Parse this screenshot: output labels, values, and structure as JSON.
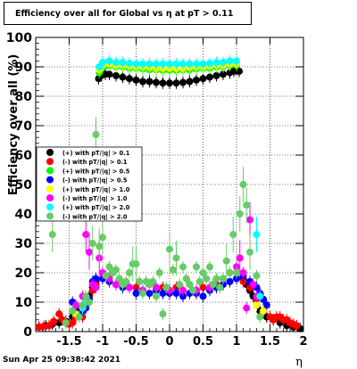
{
  "timestamp": "Sun Apr 25 09:38:42 2021",
  "chart_data": {
    "type": "scatter",
    "title": "Efficiency over all for Global vs   η at pT > 0.11",
    "xlabel": "η",
    "ylabel": "Efficiency over all (%)",
    "xlim": [
      -2,
      2
    ],
    "ylim": [
      0,
      100
    ],
    "x_ticks": [
      "-1.5",
      "-1",
      "-0.5",
      "0",
      "0.5",
      "1",
      "1.5",
      "2"
    ],
    "y_ticks": [
      "0",
      "10",
      "20",
      "30",
      "40",
      "50",
      "60",
      "70",
      "80",
      "90",
      "100"
    ],
    "grid": true,
    "legend_position": "middle-left",
    "series": [
      {
        "name": "(+) with pT/|q| > 0.1",
        "color": "#000000",
        "points": [
          [
            -1.95,
            1.5
          ],
          [
            -1.85,
            2
          ],
          [
            -1.75,
            2.5
          ],
          [
            -1.65,
            3
          ],
          [
            -1.55,
            3.5
          ],
          [
            -1.45,
            5
          ],
          [
            -1.35,
            7
          ],
          [
            -1.25,
            9
          ],
          [
            -1.2,
            12
          ],
          [
            -1.15,
            15
          ],
          [
            -1.1,
            17
          ],
          [
            -1.06,
            86
          ],
          [
            -1.02,
            87
          ],
          [
            -0.96,
            87.5
          ],
          [
            -0.9,
            87.5
          ],
          [
            -0.8,
            87
          ],
          [
            -0.7,
            86.5
          ],
          [
            -0.6,
            86
          ],
          [
            -0.5,
            85.5
          ],
          [
            -0.4,
            85
          ],
          [
            -0.3,
            85
          ],
          [
            -0.2,
            84.7
          ],
          [
            -0.1,
            84.5
          ],
          [
            0,
            84.5
          ],
          [
            0.1,
            84.5
          ],
          [
            0.2,
            84.7
          ],
          [
            0.3,
            85
          ],
          [
            0.4,
            85.5
          ],
          [
            0.5,
            86
          ],
          [
            0.6,
            86.5
          ],
          [
            0.7,
            87
          ],
          [
            0.8,
            87.5
          ],
          [
            0.9,
            88
          ],
          [
            0.96,
            88.5
          ],
          [
            1.0,
            89
          ],
          [
            1.04,
            88.5
          ],
          [
            1.1,
            18
          ],
          [
            1.15,
            16
          ],
          [
            1.2,
            14
          ],
          [
            1.25,
            12
          ],
          [
            1.3,
            9
          ],
          [
            1.35,
            7
          ],
          [
            1.45,
            5
          ],
          [
            1.55,
            4
          ],
          [
            1.65,
            3
          ],
          [
            1.75,
            2
          ],
          [
            1.85,
            1.5
          ],
          [
            1.95,
            1
          ]
        ]
      },
      {
        "name": "(-) with pT/|q| > 0.1",
        "color": "#ff0000",
        "points": [
          [
            -1.95,
            1.5
          ],
          [
            -1.88,
            1.8
          ],
          [
            -1.8,
            2
          ],
          [
            -1.73,
            3.5
          ],
          [
            -1.65,
            6
          ],
          [
            -1.6,
            4
          ],
          [
            -1.55,
            3
          ],
          [
            -1.5,
            2.5
          ],
          [
            -1.45,
            3
          ],
          [
            -1.4,
            5
          ],
          [
            -1.3,
            5
          ],
          [
            -1.25,
            9
          ],
          [
            -1.2,
            11
          ],
          [
            -1.15,
            14
          ],
          [
            -1.1,
            16
          ],
          [
            -0.9,
            17
          ],
          [
            -0.7,
            16
          ],
          [
            -0.5,
            15
          ],
          [
            -0.3,
            16
          ],
          [
            -0.1,
            15
          ],
          [
            0.1,
            15
          ],
          [
            0.3,
            16
          ],
          [
            0.5,
            15
          ],
          [
            0.7,
            16
          ],
          [
            0.9,
            17
          ],
          [
            1.1,
            17
          ],
          [
            1.2,
            15
          ],
          [
            1.3,
            11
          ],
          [
            1.4,
            7
          ],
          [
            1.5,
            5
          ],
          [
            1.55,
            4
          ],
          [
            1.6,
            5
          ],
          [
            1.65,
            5
          ],
          [
            1.7,
            4
          ],
          [
            1.75,
            4
          ],
          [
            1.8,
            3
          ],
          [
            1.85,
            2.5
          ],
          [
            1.9,
            2
          ]
        ]
      },
      {
        "name": "(+) with pT/|q| > 0.5",
        "color": "#00ff00",
        "points": [
          [
            -1.05,
            88
          ],
          [
            -1.0,
            90
          ],
          [
            -0.95,
            90.5
          ],
          [
            -0.9,
            90.5
          ],
          [
            -0.8,
            90
          ],
          [
            -0.7,
            90
          ],
          [
            -0.6,
            89.5
          ],
          [
            -0.5,
            89.5
          ],
          [
            -0.4,
            89.3
          ],
          [
            -0.3,
            89
          ],
          [
            -0.2,
            89
          ],
          [
            -0.1,
            88.8
          ],
          [
            0,
            88.8
          ],
          [
            0.1,
            88.8
          ],
          [
            0.2,
            89
          ],
          [
            0.3,
            89
          ],
          [
            0.4,
            89.3
          ],
          [
            0.5,
            89.5
          ],
          [
            0.6,
            89.5
          ],
          [
            0.7,
            90
          ],
          [
            0.8,
            90
          ],
          [
            0.9,
            90.5
          ],
          [
            1.0,
            90.5
          ]
        ]
      },
      {
        "name": "(-) with pT/|q| > 0.5",
        "color": "#0000ff",
        "points": [
          [
            -1.45,
            10
          ],
          [
            -1.4,
            9
          ],
          [
            -1.35,
            6
          ],
          [
            -1.3,
            7
          ],
          [
            -1.25,
            8
          ],
          [
            -1.2,
            11
          ],
          [
            -1.15,
            17
          ],
          [
            -1.1,
            18
          ],
          [
            -1.0,
            18
          ],
          [
            -0.9,
            17
          ],
          [
            -0.8,
            16
          ],
          [
            -0.7,
            15
          ],
          [
            -0.6,
            15
          ],
          [
            -0.5,
            13
          ],
          [
            -0.4,
            14
          ],
          [
            -0.3,
            13
          ],
          [
            -0.2,
            14
          ],
          [
            -0.1,
            13
          ],
          [
            0,
            13
          ],
          [
            0.1,
            13
          ],
          [
            0.2,
            12
          ],
          [
            0.3,
            13
          ],
          [
            0.4,
            13
          ],
          [
            0.5,
            12
          ],
          [
            0.6,
            14
          ],
          [
            0.7,
            15
          ],
          [
            0.8,
            16
          ],
          [
            0.9,
            17
          ],
          [
            1.0,
            18
          ],
          [
            1.1,
            19
          ],
          [
            1.2,
            17
          ],
          [
            1.3,
            15
          ],
          [
            1.35,
            13
          ],
          [
            1.4,
            11
          ],
          [
            1.45,
            9
          ]
        ]
      },
      {
        "name": "(+) with pT/|q| > 1.0",
        "color": "#ffff00",
        "points": [
          [
            -1.05,
            89
          ],
          [
            -1.0,
            90.5
          ],
          [
            -0.9,
            91
          ],
          [
            -0.8,
            90.5
          ],
          [
            -0.7,
            90.5
          ],
          [
            -0.6,
            90.2
          ],
          [
            -0.5,
            90
          ],
          [
            -0.4,
            90
          ],
          [
            -0.3,
            89.8
          ],
          [
            -0.2,
            89.5
          ],
          [
            -0.1,
            89.5
          ],
          [
            0,
            89.5
          ],
          [
            0.1,
            89.5
          ],
          [
            0.2,
            89.5
          ],
          [
            0.3,
            89.8
          ],
          [
            0.4,
            90
          ],
          [
            0.5,
            90
          ],
          [
            0.6,
            90.2
          ],
          [
            0.7,
            90.5
          ],
          [
            0.8,
            90.5
          ],
          [
            0.9,
            91
          ],
          [
            1.0,
            91
          ],
          [
            -1.4,
            6
          ],
          [
            -1.3,
            8
          ],
          [
            1.3,
            9
          ],
          [
            1.4,
            7
          ]
        ]
      },
      {
        "name": "(-) with pT/|q| > 1.0",
        "color": "#ff00ff",
        "points": [
          [
            -1.4,
            9
          ],
          [
            -1.3,
            12
          ],
          [
            -1.25,
            33
          ],
          [
            -1.2,
            27
          ],
          [
            -1.15,
            16
          ],
          [
            -1.1,
            15
          ],
          [
            -1.05,
            25
          ],
          [
            -1.0,
            20
          ],
          [
            -0.9,
            18
          ],
          [
            -0.8,
            16
          ],
          [
            -0.6,
            15
          ],
          [
            -0.4,
            14
          ],
          [
            -0.2,
            15
          ],
          [
            0,
            14
          ],
          [
            0.2,
            14
          ],
          [
            0.4,
            14
          ],
          [
            0.6,
            15
          ],
          [
            0.8,
            18
          ],
          [
            0.9,
            20
          ],
          [
            1.0,
            22
          ],
          [
            1.05,
            25
          ],
          [
            1.1,
            20
          ],
          [
            1.15,
            8
          ],
          [
            1.2,
            38
          ],
          [
            1.25,
            16
          ],
          [
            1.3,
            12
          ]
        ]
      },
      {
        "name": "(+) with pT/|q| > 2.0",
        "color": "#00ffff",
        "points": [
          [
            -1.05,
            90
          ],
          [
            -1.0,
            91.5
          ],
          [
            -0.9,
            92
          ],
          [
            -0.8,
            91.5
          ],
          [
            -0.7,
            91.5
          ],
          [
            -0.6,
            91.2
          ],
          [
            -0.5,
            91
          ],
          [
            -0.4,
            91
          ],
          [
            -0.3,
            91
          ],
          [
            -0.2,
            91
          ],
          [
            -0.1,
            91
          ],
          [
            0,
            91
          ],
          [
            0.1,
            91
          ],
          [
            0.2,
            91
          ],
          [
            0.3,
            91
          ],
          [
            0.4,
            91
          ],
          [
            0.5,
            91
          ],
          [
            0.6,
            91.2
          ],
          [
            0.7,
            91.5
          ],
          [
            0.8,
            91.5
          ],
          [
            0.9,
            92
          ],
          [
            1.0,
            92
          ],
          [
            -1.3,
            8
          ],
          [
            -1.25,
            10
          ],
          [
            1.3,
            33
          ],
          [
            1.35,
            12
          ]
        ]
      },
      {
        "name": "(-) with pT/|q| > 2.0",
        "color": "#66cc66",
        "points": [
          [
            -1.75,
            33
          ],
          [
            -1.55,
            3
          ],
          [
            -1.45,
            7
          ],
          [
            -1.35,
            5
          ],
          [
            -1.3,
            9
          ],
          [
            -1.25,
            12
          ],
          [
            -1.2,
            10
          ],
          [
            -1.15,
            30
          ],
          [
            -1.1,
            67
          ],
          [
            -1.05,
            29
          ],
          [
            -1.0,
            32
          ],
          [
            -0.95,
            19
          ],
          [
            -0.9,
            22
          ],
          [
            -0.85,
            20
          ],
          [
            -0.8,
            21
          ],
          [
            -0.75,
            18
          ],
          [
            -0.7,
            16
          ],
          [
            -0.65,
            17
          ],
          [
            -0.6,
            20
          ],
          [
            -0.55,
            23
          ],
          [
            -0.5,
            23
          ],
          [
            -0.45,
            17
          ],
          [
            -0.4,
            13
          ],
          [
            -0.35,
            17
          ],
          [
            -0.3,
            16
          ],
          [
            -0.25,
            17
          ],
          [
            -0.2,
            12
          ],
          [
            -0.15,
            20
          ],
          [
            -0.1,
            6
          ],
          [
            -0.05,
            15
          ],
          [
            0,
            28
          ],
          [
            0.05,
            21
          ],
          [
            0.1,
            25
          ],
          [
            0.15,
            16
          ],
          [
            0.2,
            22
          ],
          [
            0.25,
            18
          ],
          [
            0.3,
            16
          ],
          [
            0.35,
            14
          ],
          [
            0.4,
            22
          ],
          [
            0.45,
            17
          ],
          [
            0.5,
            20
          ],
          [
            0.55,
            18
          ],
          [
            0.6,
            22
          ],
          [
            0.65,
            16
          ],
          [
            0.7,
            18
          ],
          [
            0.75,
            15
          ],
          [
            0.8,
            18
          ],
          [
            0.85,
            24
          ],
          [
            0.9,
            20
          ],
          [
            0.95,
            33
          ],
          [
            1.0,
            20
          ],
          [
            1.05,
            40
          ],
          [
            1.1,
            50
          ],
          [
            1.15,
            43
          ],
          [
            1.2,
            27
          ],
          [
            1.3,
            19
          ],
          [
            1.35,
            5
          ]
        ]
      }
    ]
  }
}
